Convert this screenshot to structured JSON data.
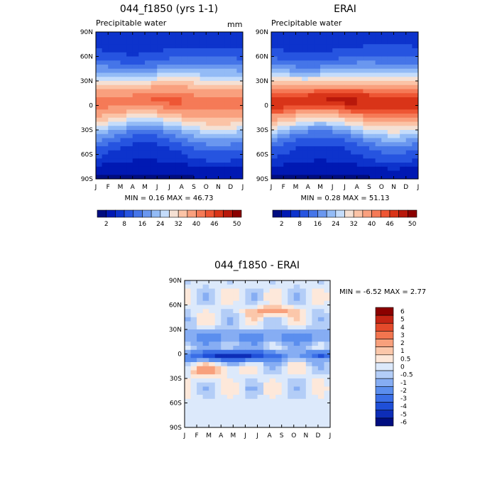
{
  "palette": {
    "abs": [
      "#000d80",
      "#0019b3",
      "#0d33cc",
      "#2654e0",
      "#4575e8",
      "#6a97ef",
      "#93bbf6",
      "#c4dcfb",
      "#f5e0d3",
      "#fbc3a6",
      "#f9a07e",
      "#f57a57",
      "#ee5634",
      "#d93418",
      "#b8180b",
      "#8b0000"
    ],
    "diff": [
      "#000d80",
      "#0d2db8",
      "#1f4fd8",
      "#3a6ee6",
      "#5b8eee",
      "#86adf3",
      "#b3cdf7",
      "#dce9fb",
      "#fde8da",
      "#fbc7aa",
      "#f8a07c",
      "#f2754f",
      "#e44a2b",
      "#c42414",
      "#8b0000"
    ]
  },
  "chart_data": [
    {
      "type": "heatmap",
      "title": "044_f1850 (yrs 1-1)",
      "subtitle": "Precipitable water",
      "units": "mm",
      "x_ticks": [
        "J",
        "F",
        "M",
        "A",
        "M",
        "J",
        "J",
        "A",
        "S",
        "O",
        "N",
        "D",
        "J"
      ],
      "y_ticks": [
        "90N",
        "60N",
        "30N",
        "0",
        "30S",
        "60S",
        "90S"
      ],
      "stats": "MIN =   0.16 MAX =   46.73",
      "min": 0.16,
      "max": 46.73,
      "colorbar_labels": [
        "2",
        "8",
        "16",
        "24",
        "32",
        "40",
        "46",
        "50"
      ],
      "colorbar_levels": [
        2,
        5,
        8,
        12,
        16,
        20,
        24,
        28,
        32,
        36,
        40,
        42,
        44,
        46,
        48,
        50
      ]
    },
    {
      "type": "heatmap",
      "title": "ERAI",
      "subtitle": "Precipitable water",
      "units": "",
      "x_ticks": [
        "J",
        "F",
        "M",
        "A",
        "M",
        "J",
        "J",
        "A",
        "S",
        "O",
        "N",
        "D",
        "J"
      ],
      "y_ticks": [
        "90N",
        "60N",
        "30N",
        "0",
        "30S",
        "60S",
        "90S"
      ],
      "stats": "MIN =   0.28 MAX =   51.13",
      "min": 0.28,
      "max": 51.13,
      "colorbar_labels": [
        "2",
        "8",
        "16",
        "24",
        "32",
        "40",
        "46",
        "50"
      ],
      "colorbar_levels": [
        2,
        5,
        8,
        12,
        16,
        20,
        24,
        28,
        32,
        36,
        40,
        42,
        44,
        46,
        48,
        50
      ]
    },
    {
      "type": "heatmap",
      "title": "044_f1850 - ERAI",
      "subtitle": "",
      "units": "",
      "x_ticks": [
        "J",
        "F",
        "M",
        "A",
        "M",
        "J",
        "J",
        "A",
        "S",
        "O",
        "N",
        "D",
        "J"
      ],
      "y_ticks": [
        "90N",
        "60N",
        "30N",
        "0",
        "30S",
        "60S",
        "90S"
      ],
      "stats": "MIN =   -6.52 MAX =    2.77",
      "min": -6.52,
      "max": 2.77,
      "colorbar_labels": [
        "6",
        "5",
        "4",
        "3",
        "2",
        "1",
        "0.5",
        "0",
        "-0.5",
        "-1",
        "-2",
        "-3",
        "-4",
        "-5",
        "-6"
      ],
      "colorbar_levels": [
        6,
        5,
        4,
        3,
        2,
        1,
        0.5,
        0,
        -0.5,
        -1,
        -2,
        -3,
        -4,
        -5,
        -6
      ]
    }
  ]
}
